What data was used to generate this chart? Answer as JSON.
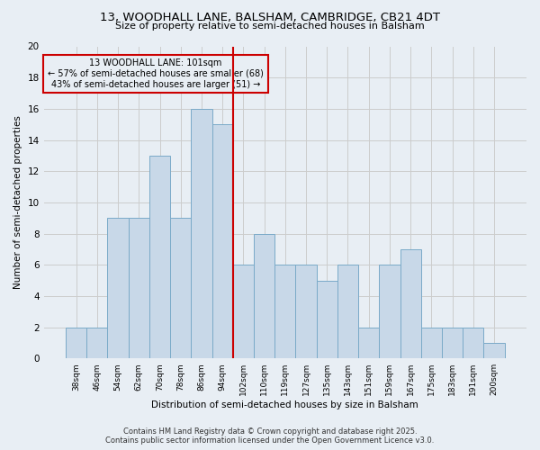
{
  "title": "13, WOODHALL LANE, BALSHAM, CAMBRIDGE, CB21 4DT",
  "subtitle": "Size of property relative to semi-detached houses in Balsham",
  "xlabel": "Distribution of semi-detached houses by size in Balsham",
  "ylabel": "Number of semi-detached properties",
  "categories": [
    "38sqm",
    "46sqm",
    "54sqm",
    "62sqm",
    "70sqm",
    "78sqm",
    "86sqm",
    "94sqm",
    "102sqm",
    "110sqm",
    "119sqm",
    "127sqm",
    "135sqm",
    "143sqm",
    "151sqm",
    "159sqm",
    "167sqm",
    "175sqm",
    "183sqm",
    "191sqm",
    "200sqm"
  ],
  "values": [
    2,
    2,
    9,
    9,
    13,
    9,
    16,
    15,
    6,
    8,
    6,
    6,
    5,
    6,
    2,
    6,
    7,
    2,
    2,
    2,
    1
  ],
  "bar_color": "#c8d8e8",
  "bar_edge_color": "#7aaac8",
  "vline_color": "#cc0000",
  "annotation_lines": [
    "13 WOODHALL LANE: 101sqm",
    "← 57% of semi-detached houses are smaller (68)",
    "43% of semi-detached houses are larger (51) →"
  ],
  "annotation_box_color": "#cc0000",
  "ylim": [
    0,
    20
  ],
  "yticks": [
    0,
    2,
    4,
    6,
    8,
    10,
    12,
    14,
    16,
    18,
    20
  ],
  "grid_color": "#cccccc",
  "bg_color": "#e8eef4",
  "footer_line1": "Contains HM Land Registry data © Crown copyright and database right 2025.",
  "footer_line2": "Contains public sector information licensed under the Open Government Licence v3.0."
}
